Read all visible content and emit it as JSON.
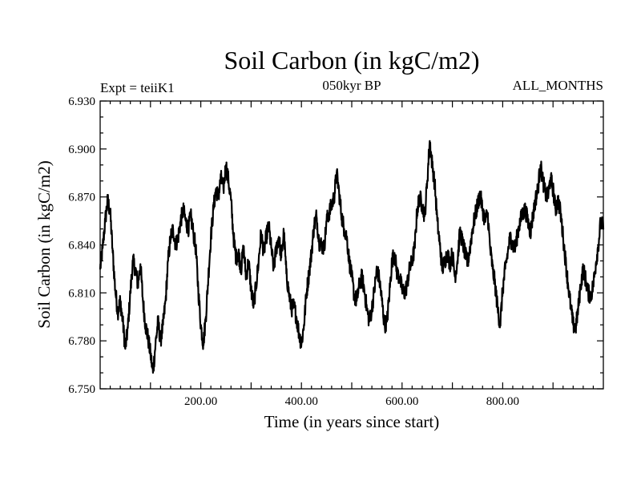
{
  "chart_data": {
    "type": "line",
    "title": "Soil Carbon (in kgC/m2)",
    "subtitle": "050kyr BP",
    "left_label": "Expt = teiiK1",
    "right_label": "ALL_MONTHS",
    "xlabel": "Time (in years since start)",
    "ylabel": "Soil Carbon (in kgC/m2)",
    "xlim": [
      0,
      1000
    ],
    "ylim": [
      6.75,
      6.93
    ],
    "x_ticks": [
      200,
      400,
      600,
      800
    ],
    "x_tick_labels": [
      "200.00",
      "400.00",
      "600.00",
      "800.00"
    ],
    "y_ticks": [
      6.75,
      6.78,
      6.81,
      6.84,
      6.87,
      6.9,
      6.93
    ],
    "y_tick_labels": [
      "6.750",
      "6.780",
      "6.810",
      "6.840",
      "6.870",
      "6.900",
      "6.930"
    ],
    "grid": false,
    "line_color": "#000000",
    "series": [
      {
        "x": [
          0,
          5,
          10,
          15,
          20,
          25,
          30,
          35,
          40,
          45,
          50,
          55,
          60,
          65,
          70,
          75,
          80,
          85,
          90,
          95,
          100,
          105,
          110,
          115,
          120,
          125,
          130,
          135,
          140,
          145,
          150,
          155,
          160,
          165,
          170,
          175,
          180,
          185,
          190,
          195,
          200,
          205,
          210,
          215,
          220,
          225,
          230,
          235,
          240,
          245,
          250,
          255,
          260,
          265,
          270,
          275,
          280,
          285,
          290,
          295,
          300,
          305,
          310,
          315,
          320,
          325,
          330,
          335,
          340,
          345,
          350,
          355,
          360,
          365,
          370,
          375,
          380,
          385,
          390,
          395,
          400,
          405,
          410,
          415,
          420,
          425,
          430,
          435,
          440,
          445,
          450,
          455,
          460,
          465,
          470,
          475,
          480,
          485,
          490,
          495,
          500,
          505,
          510,
          515,
          520,
          525,
          530,
          535,
          540,
          545,
          550,
          555,
          560,
          565,
          570,
          575,
          580,
          585,
          590,
          595,
          600,
          605,
          610,
          615,
          620,
          625,
          630,
          635,
          640,
          645,
          650,
          655,
          660,
          665,
          670,
          675,
          680,
          685,
          690,
          695,
          700,
          705,
          710,
          715,
          720,
          725,
          730,
          735,
          740,
          745,
          750,
          755,
          760,
          765,
          770,
          775,
          780,
          785,
          790,
          795,
          800,
          805,
          810,
          815,
          820,
          825,
          830,
          835,
          840,
          845,
          850,
          855,
          860,
          865,
          870,
          875,
          880,
          885,
          890,
          895,
          900,
          905,
          910,
          915,
          920,
          925,
          930,
          935,
          940,
          945,
          950,
          955,
          960,
          965,
          970,
          975,
          980,
          985,
          990,
          995,
          1000
        ],
        "y": [
          6.825,
          6.838,
          6.855,
          6.868,
          6.86,
          6.835,
          6.812,
          6.798,
          6.805,
          6.792,
          6.775,
          6.788,
          6.81,
          6.83,
          6.825,
          6.815,
          6.828,
          6.805,
          6.79,
          6.782,
          6.772,
          6.76,
          6.778,
          6.792,
          6.78,
          6.79,
          6.805,
          6.83,
          6.845,
          6.85,
          6.84,
          6.845,
          6.855,
          6.862,
          6.855,
          6.85,
          6.858,
          6.848,
          6.838,
          6.812,
          6.79,
          6.778,
          6.795,
          6.82,
          6.845,
          6.862,
          6.875,
          6.87,
          6.882,
          6.875,
          6.89,
          6.88,
          6.868,
          6.845,
          6.832,
          6.835,
          6.825,
          6.838,
          6.82,
          6.83,
          6.812,
          6.802,
          6.815,
          6.83,
          6.848,
          6.835,
          6.845,
          6.852,
          6.838,
          6.825,
          6.838,
          6.845,
          6.832,
          6.848,
          6.822,
          6.81,
          6.8,
          6.802,
          6.795,
          6.785,
          6.778,
          6.79,
          6.81,
          6.822,
          6.835,
          6.852,
          6.858,
          6.842,
          6.84,
          6.838,
          6.855,
          6.86,
          6.865,
          6.87,
          6.885,
          6.872,
          6.858,
          6.85,
          6.845,
          6.83,
          6.82,
          6.808,
          6.805,
          6.815,
          6.82,
          6.812,
          6.8,
          6.792,
          6.8,
          6.812,
          6.825,
          6.818,
          6.805,
          6.79,
          6.792,
          6.81,
          6.83,
          6.835,
          6.822,
          6.82,
          6.812,
          6.81,
          6.815,
          6.825,
          6.83,
          6.838,
          6.862,
          6.87,
          6.865,
          6.858,
          6.88,
          6.905,
          6.89,
          6.878,
          6.855,
          6.84,
          6.825,
          6.83,
          6.835,
          6.828,
          6.835,
          6.82,
          6.83,
          6.848,
          6.842,
          6.835,
          6.828,
          6.838,
          6.85,
          6.858,
          6.865,
          6.872,
          6.862,
          6.855,
          6.86,
          6.838,
          6.825,
          6.815,
          6.8,
          6.79,
          6.812,
          6.825,
          6.835,
          6.845,
          6.84,
          6.838,
          6.848,
          6.855,
          6.86,
          6.862,
          6.855,
          6.848,
          6.858,
          6.868,
          6.875,
          6.89,
          6.88,
          6.872,
          6.87,
          6.882,
          6.875,
          6.862,
          6.868,
          6.86,
          6.845,
          6.83,
          6.815,
          6.802,
          6.79,
          6.788,
          6.8,
          6.815,
          6.825,
          6.818,
          6.81,
          6.808,
          6.815,
          6.828,
          6.84,
          6.855,
          6.85
        ]
      }
    ]
  }
}
